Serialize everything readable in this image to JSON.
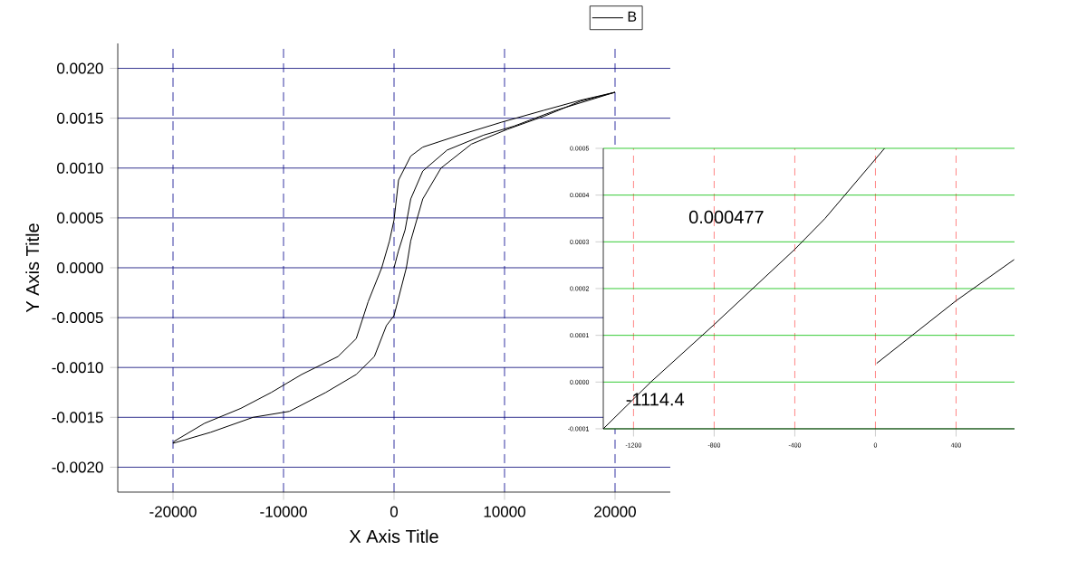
{
  "chart_data": [
    {
      "type": "line",
      "xlabel": "X Axis Title",
      "ylabel": "Y Axis Title",
      "xlim": [
        -25000,
        25000
      ],
      "ylim": [
        -0.00225,
        0.00225
      ],
      "xticks": [
        -20000,
        -10000,
        0,
        10000,
        20000
      ],
      "yticks": [
        {
          "value": -0.002,
          "label": "-0.0020"
        },
        {
          "value": -0.0015,
          "label": "-0.0015"
        },
        {
          "value": -0.001,
          "label": "-0.0010"
        },
        {
          "value": -0.0005,
          "label": "-0.0005"
        },
        {
          "value": 0,
          "label": "0.0000"
        },
        {
          "value": 0.0005,
          "label": "0.0005"
        },
        {
          "value": 0.001,
          "label": "0.0010"
        },
        {
          "value": 0.0015,
          "label": "0.0015"
        },
        {
          "value": 0.002,
          "label": "0.0020"
        }
      ],
      "grid": true,
      "legend": "top right",
      "marker": "none",
      "series": [
        {
          "name": "B",
          "color": "#000000",
          "x": [
            0,
            400,
            1000,
            1510,
            2600,
            4800,
            8100,
            10840,
            14680,
            20000,
            16870,
            13580,
            9740,
            5900,
            2600,
            1510,
            410,
            0,
            -410,
            -1114.4,
            -2340,
            -3420,
            -5070,
            -8360,
            -11100,
            -13860,
            -17150,
            -19890,
            -20000,
            -16590,
            -12760,
            -9470,
            -6170,
            -3420,
            -1780,
            -690,
            0,
            1114.4,
            1510,
            2600,
            4250,
            7000,
            10290,
            13580,
            16870,
            20000
          ],
          "values": [
            0,
            0.00017,
            0.00038,
            0.00069,
            0.00097,
            0.00118,
            0.00133,
            0.00142,
            0.00158,
            0.00176,
            0.00168,
            0.00158,
            0.00146,
            0.00133,
            0.00121,
            0.00112,
            0.00088,
            0.00048,
            0.00027,
            0,
            -0.00034,
            -0.00071,
            -0.00089,
            -0.00107,
            -0.00125,
            -0.00141,
            -0.00156,
            -0.00174,
            -0.00176,
            -0.00165,
            -0.0015,
            -0.00144,
            -0.00125,
            -0.00107,
            -0.00089,
            -0.00058,
            -0.00048,
            0,
            0.00027,
            0.00069,
            0.001,
            0.00124,
            0.00139,
            0.00152,
            0.00167,
            0.00176
          ]
        }
      ]
    },
    {
      "type": "line",
      "xlim": [
        -1350,
        690
      ],
      "ylim": [
        -0.0001,
        0.0005
      ],
      "xticks": [
        -1200,
        -800,
        -400,
        0,
        400
      ],
      "yticks": [
        {
          "value": -0.0001,
          "label": "-0.0001"
        },
        {
          "value": 0,
          "label": "0.0000"
        },
        {
          "value": 0.0001,
          "label": "0.0001"
        },
        {
          "value": 0.0002,
          "label": "0.0002"
        },
        {
          "value": 0.0003,
          "label": "0.0003"
        },
        {
          "value": 0.0004,
          "label": "0.0004"
        },
        {
          "value": 0.0005,
          "label": "0.0005"
        }
      ],
      "grid": true,
      "marker": "none",
      "annotations": [
        "0.000477",
        "-1114.4"
      ],
      "series": [
        {
          "color": "#000000",
          "x": [
            -1350,
            -1114.4,
            -800,
            -400,
            -250,
            0,
            45
          ],
          "values": [
            -0.0001,
            0,
            0.000123,
            0.000284,
            0.00035,
            0.000477,
            0.0005
          ]
        },
        {
          "color": "#000000",
          "x": [
            6,
            400,
            688
          ],
          "values": [
            4e-05,
            0.000174,
            0.000262
          ]
        }
      ]
    }
  ]
}
